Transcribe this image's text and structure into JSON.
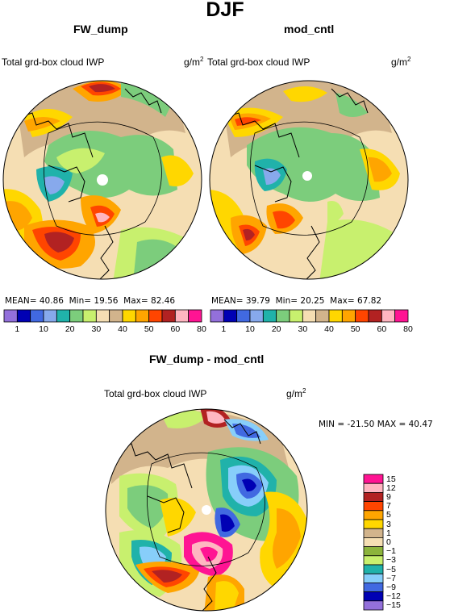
{
  "figure_title": "DJF",
  "panels": [
    {
      "title": "FW_dump",
      "variable": "Total grd-box cloud IWP",
      "units_base": "g/m",
      "units_exp": "2",
      "stats": {
        "mean_label": "MEAN=",
        "mean": "40.86",
        "min_label": "Min=",
        "min": "19.56",
        "max_label": "Max=",
        "max": "82.46"
      }
    },
    {
      "title": "mod_cntl",
      "variable": "Total grd-box cloud IWP",
      "units_base": "g/m",
      "units_exp": "2",
      "stats": {
        "mean_label": "MEAN=",
        "mean": "39.79",
        "min_label": "Min=",
        "min": "20.25",
        "max_label": "Max=",
        "max": "67.82"
      }
    }
  ],
  "abs_colorbar": {
    "colors": [
      "#9370db",
      "#0000b4",
      "#4169e1",
      "#87a9ec",
      "#20b2aa",
      "#7ccd7c",
      "#c8f06e",
      "#f5deb3",
      "#d2b48c",
      "#ffd700",
      "#ffa500",
      "#ff4500",
      "#b22222",
      "#ffb6c1",
      "#ff1493"
    ],
    "labels": [
      "1",
      "10",
      "20",
      "30",
      "40",
      "50",
      "60",
      "80"
    ]
  },
  "diff_panel": {
    "title": "FW_dump - mod_cntl",
    "variable": "Total grd-box cloud IWP",
    "units_base": "g/m",
    "units_exp": "2",
    "stats": {
      "min_label": "MIN =",
      "min": "-21.50",
      "max_label": "MAX =",
      "max": "40.47"
    }
  },
  "diff_colorbar": {
    "colors": [
      "#ff1493",
      "#ffb6c1",
      "#b22222",
      "#ff4500",
      "#ffa500",
      "#ffd700",
      "#d2b48c",
      "#f5deb3",
      "#8cb43c",
      "#c8f06e",
      "#20b2aa",
      "#87cefa",
      "#4169e1",
      "#0000b4",
      "#9370db"
    ],
    "labels": [
      "15",
      "12",
      "9",
      "7",
      "5",
      "3",
      "1",
      "0",
      "−1",
      "−3",
      "−5",
      "−7",
      "−9",
      "−12",
      "−15"
    ]
  }
}
